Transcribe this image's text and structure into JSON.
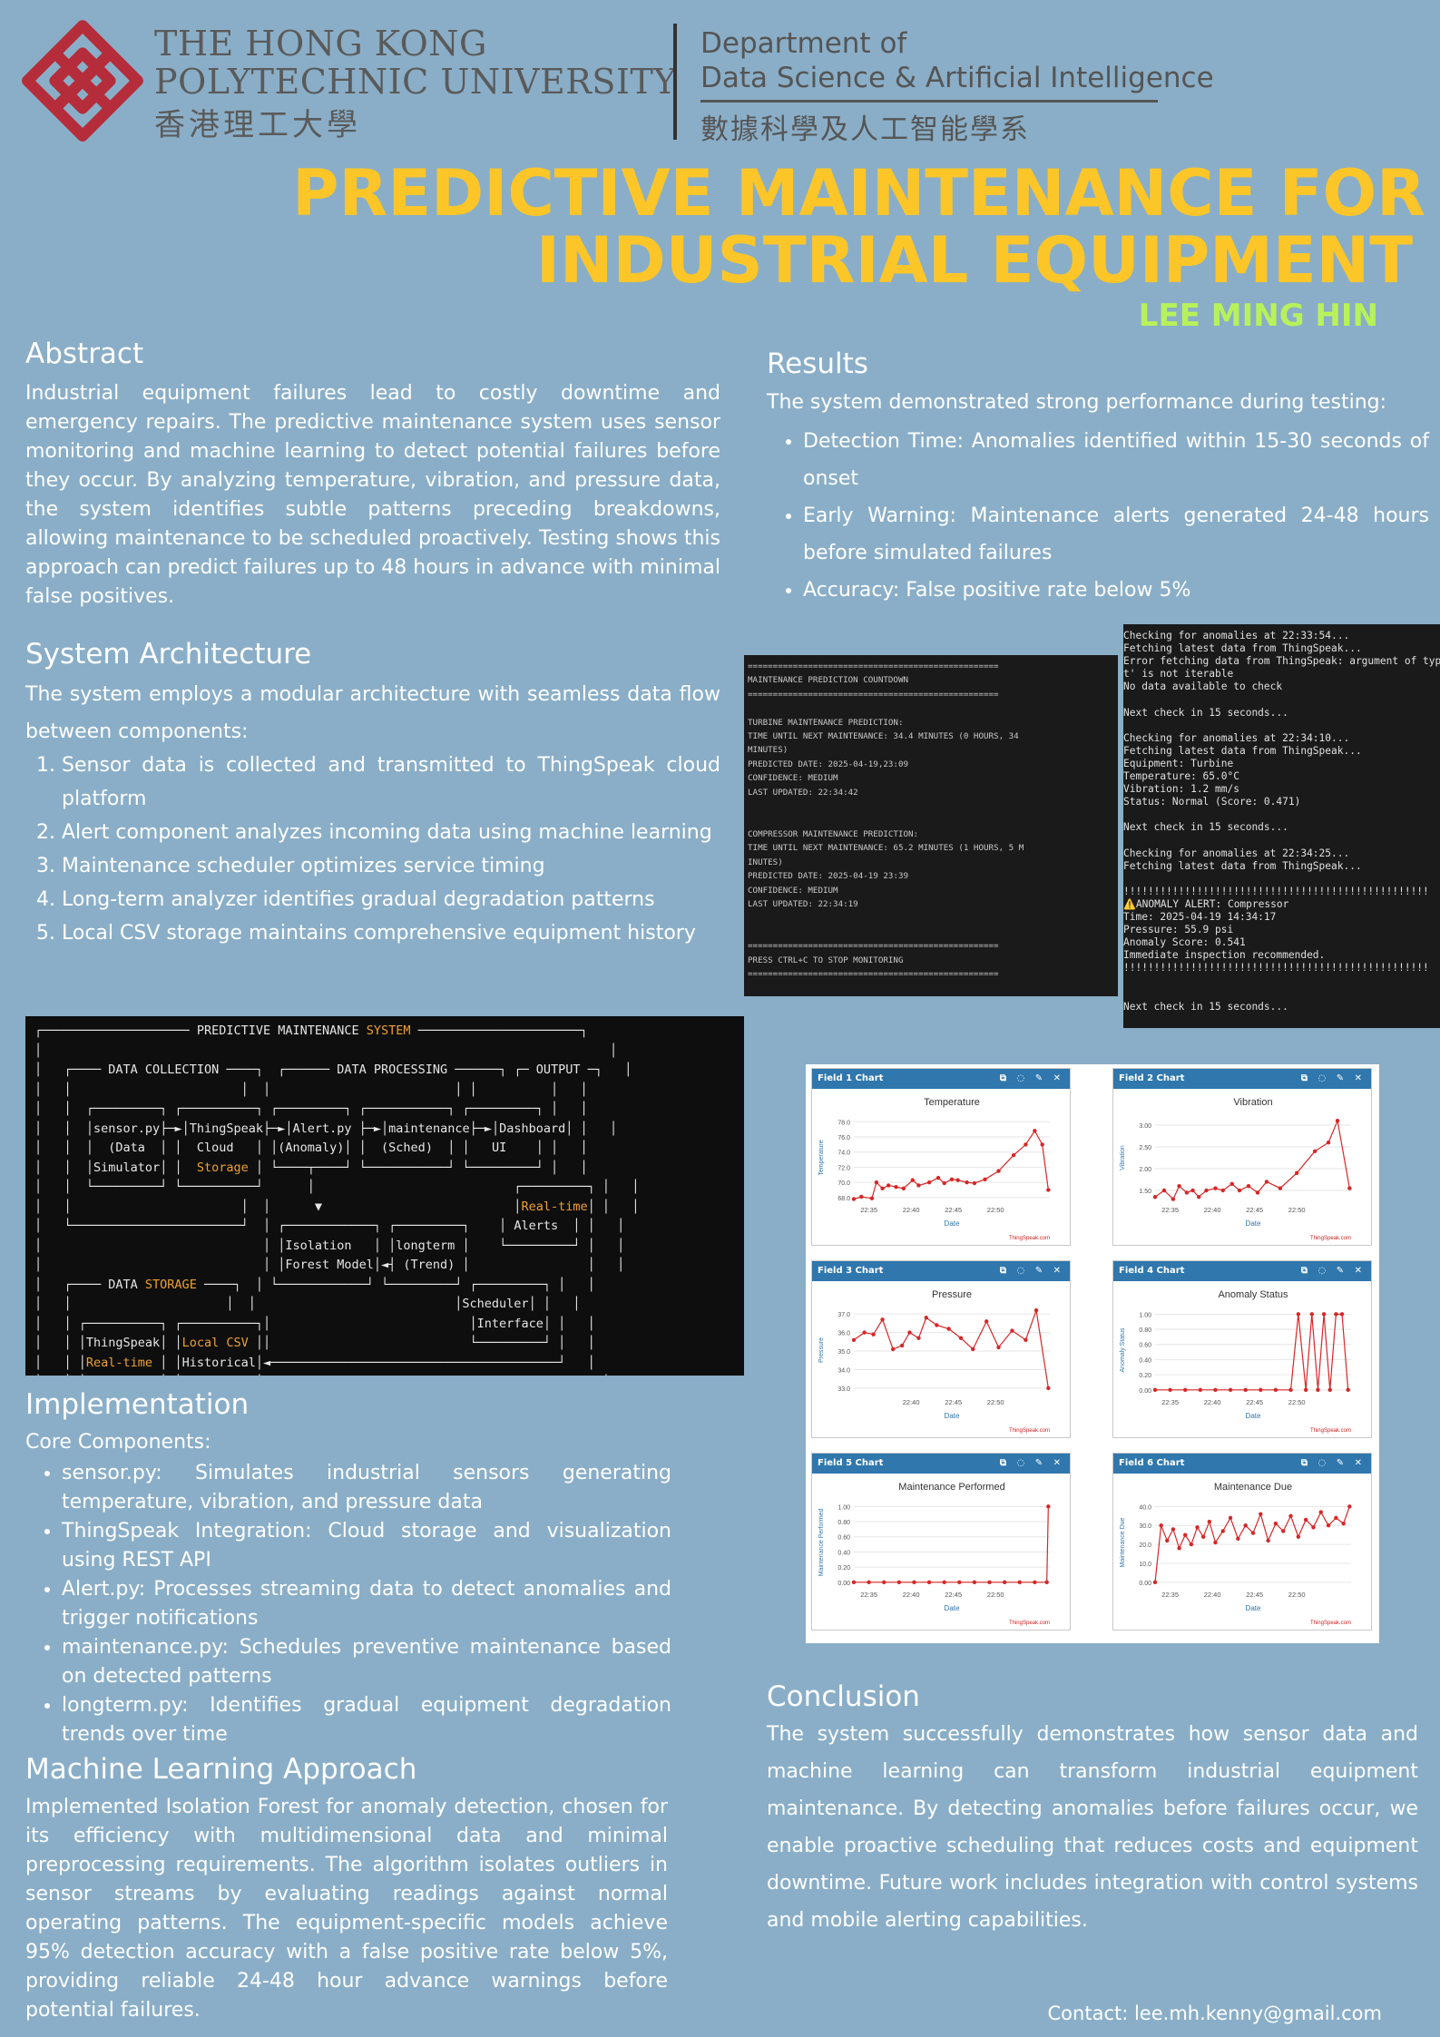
{
  "header": {
    "university_en_line1": "THE HONG KONG",
    "university_en_line2": "POLYTECHNIC UNIVERSITY",
    "university_zh": "香港理工大學",
    "department_line1": "Department of",
    "department_line2": "Data Science & Artificial Intelligence",
    "department_zh": "數據科學及人工智能學系",
    "logo_icon": "polyu-logo-icon",
    "logo_color": "#b52d3a"
  },
  "title": {
    "line1": "PREDICTIVE MAINTENANCE FOR",
    "line2": "INDUSTRIAL EQUIPMENT",
    "color": "#fcc629"
  },
  "author": {
    "name": "LEE MING HIN",
    "color": "#b8f25a"
  },
  "abstract": {
    "heading": "Abstract",
    "text": "Industrial equipment failures lead to costly downtime and emergency repairs. The predictive maintenance system uses sensor monitoring and machine learning to detect potential failures before they occur. By analyzing temperature, vibration, and pressure data, the system identifies subtle patterns preceding breakdowns, allowing maintenance to be scheduled proactively. Testing shows this approach can predict failures up to 48 hours in advance with minimal false positives."
  },
  "architecture": {
    "heading": "System Architecture",
    "intro": "The system employs a modular architecture with seamless data flow between components:",
    "steps": [
      "Sensor data is collected and transmitted to ThingSpeak cloud platform",
      "Alert component analyzes incoming data using machine learning",
      "Maintenance scheduler optimizes service timing",
      "Long-term analyzer identifies gradual degradation patterns",
      "Local CSV storage maintains comprehensive equipment history"
    ]
  },
  "diagram": {
    "title_a": "PREDICTIVE MAINTENANCE ",
    "title_b": "SYSTEM",
    "data_collection": "DATA COLLECTION",
    "data_processing": "DATA PROCESSING",
    "output": "OUTPUT",
    "data_storage_a": "DATA ",
    "data_storage_b": "STORAGE",
    "sensor_1": "sensor.py",
    "sensor_2": "(Data",
    "sensor_3": "Simulator",
    "ts_1": "ThingSpeak",
    "ts_2": "Cloud",
    "ts_3": "Storage",
    "alert_1": "Alert.py",
    "alert_2": "(Anomaly)",
    "maint_1": "maintenance",
    "maint_2": "(Sched)",
    "dash_1": "Dashboard",
    "dash_2": "UI",
    "iso_1": "Isolation",
    "iso_2": "Forest Model",
    "lt_1": "longterm",
    "lt_2": "(Trend)",
    "rt_1": "Real-time",
    "rt_2": "Alerts",
    "tsr_1": "ThingSpeak",
    "tsr_2": "Real-time",
    "csv_1": "Local CSV",
    "csv_2": "Historical",
    "sched_1": "Scheduler",
    "sched_2": "Interface"
  },
  "implementation": {
    "heading": "Implementation",
    "subheading": "Core Components:",
    "items": [
      "sensor.py: Simulates industrial sensors generating temperature, vibration, and pressure data",
      "ThingSpeak Integration: Cloud storage and visualization using REST API",
      "Alert.py: Processes streaming data to detect anomalies and trigger notifications",
      "maintenance.py: Schedules preventive maintenance based on detected patterns",
      "longterm.py: Identifies gradual equipment degradation trends over time"
    ]
  },
  "ml": {
    "heading": "Machine Learning Approach",
    "text": "Implemented Isolation Forest for anomaly detection, chosen for its efficiency with multidimensional data and minimal preprocessing requirements. The algorithm isolates outliers in sensor streams by evaluating readings against normal operating patterns. The equipment-specific models achieve 95% detection accuracy with a false positive rate below 5%, providing reliable 24-48 hour advance warnings before potential failures."
  },
  "results": {
    "heading": "Results",
    "intro": "The system demonstrated strong performance during testing:",
    "items": [
      "Detection Time: Anomalies identified within 15-30 seconds of onset",
      "Early Warning: Maintenance alerts generated 24-48 hours before simulated failures",
      "Accuracy: False positive rate below 5%"
    ]
  },
  "terminal_countdown": {
    "lines": [
      "==================================================",
      "MAINTENANCE PREDICTION COUNTDOWN",
      "==================================================",
      "",
      "TURBINE MAINTENANCE PREDICTION:",
      "TIME UNTIL NEXT MAINTENANCE: 34.4 MINUTES (0 HOURS, 34",
      "MINUTES)",
      "PREDICTED DATE: 2025-04-19,23:09",
      "CONFIDENCE: MEDIUM",
      "LAST UPDATED: 22:34:42",
      "",
      "",
      "COMPRESSOR MAINTENANCE PREDICTION:",
      "TIME UNTIL NEXT MAINTENANCE: 65.2 MINUTES (1 HOURS, 5 M",
      "INUTES)",
      "PREDICTED DATE: 2025-04-19 23:39",
      "CONFIDENCE: MEDIUM",
      "LAST UPDATED: 22:34:19",
      "",
      "",
      "==================================================",
      "PRESS CTRL+C TO STOP MONITORING",
      "=================================================="
    ]
  },
  "terminal_log": {
    "lines": [
      "Checking for anomalies at 22:33:54...",
      "Fetching latest data from ThingSpeak...",
      "Error fetching data from ThingSpeak: argument of type",
      "t' is not iterable",
      "No data available to check",
      "",
      "Next check in 15 seconds...",
      "",
      "Checking for anomalies at 22:34:10...",
      "Fetching latest data from ThingSpeak...",
      "Equipment: Turbine",
      "Temperature: 65.0°C",
      "Vibration: 1.2 mm/s",
      "Status: Normal (Score: 0.471)",
      "",
      "Next check in 15 seconds...",
      "",
      "Checking for anomalies at 22:34:25...",
      "Fetching latest data from ThingSpeak...",
      "",
      "!!!!!!!!!!!!!!!!!!!!!!!!!!!!!!!!!!!!!!!!!!!!!!!!!!",
      "⚠️ANOMALY ALERT: Compressor",
      "Time: 2025-04-19 14:34:17",
      "Pressure: 55.9 psi",
      "Anomaly Score: 0.541",
      "Immediate inspection recommended.",
      "!!!!!!!!!!!!!!!!!!!!!!!!!!!!!!!!!!!!!!!!!!!!!!!!!!",
      "",
      "",
      "Next check in 15 seconds..."
    ]
  },
  "chart_data": [
    {
      "type": "line",
      "panel": "Field 1 Chart",
      "title": "Temperature",
      "xlabel": "Date",
      "ylabel": "Temperature",
      "credit": "ThingSpeak.com",
      "xticks": [
        "22:35",
        "22:40",
        "22:45",
        "22:50"
      ],
      "yticks": [
        "68.0",
        "70.0",
        "72.0",
        "74.0",
        "76.0",
        "78.0"
      ],
      "ylim": [
        67.5,
        79
      ],
      "x": [
        0,
        0.5,
        1.2,
        1.5,
        1.9,
        2.3,
        2.8,
        3.3,
        3.9,
        4.3,
        5,
        5.6,
        6,
        6.5,
        6.9,
        7.5,
        8,
        8.7,
        9.6,
        10.6,
        11.4,
        12,
        12.5,
        12.9
      ],
      "y": [
        67.8,
        68.1,
        67.9,
        70.0,
        69.2,
        69.6,
        69.4,
        69.2,
        70.3,
        69.6,
        70.0,
        70.6,
        69.9,
        70.4,
        70.3,
        70.0,
        69.9,
        70.4,
        71.5,
        73.6,
        75.0,
        76.8,
        75.0,
        69.0
      ]
    },
    {
      "type": "line",
      "panel": "Field 2 Chart",
      "title": "Vibration",
      "xlabel": "Date",
      "ylabel": "Vibration",
      "credit": "ThingSpeak.com",
      "xticks": [
        "22:35",
        "22:40",
        "22:45",
        "22:50"
      ],
      "yticks": [
        "1.50",
        "2.00",
        "2.50",
        "3.00"
      ],
      "ylim": [
        1.25,
        3.25
      ],
      "x": [
        0,
        0.6,
        1.2,
        1.6,
        2.1,
        2.5,
        2.9,
        3.4,
        4,
        4.5,
        5.1,
        5.6,
        6.2,
        6.8,
        7.4,
        8.3,
        9.4,
        10.6,
        11.5,
        12.1,
        12.9
      ],
      "y": [
        1.35,
        1.5,
        1.3,
        1.6,
        1.45,
        1.5,
        1.35,
        1.5,
        1.55,
        1.5,
        1.65,
        1.5,
        1.6,
        1.45,
        1.7,
        1.55,
        1.9,
        2.4,
        2.6,
        3.1,
        1.55
      ]
    },
    {
      "type": "line",
      "panel": "Field 3 Chart",
      "title": "Pressure",
      "xlabel": "Date",
      "ylabel": "Pressure",
      "credit": "ThingSpeak.com",
      "xticks": [
        "22:40",
        "22:45",
        "22:50"
      ],
      "yticks": [
        "33.0",
        "34.0",
        "35.0",
        "36.0",
        "37.0"
      ],
      "ylim": [
        32.7,
        37.4
      ],
      "x": [
        0,
        0.7,
        1.3,
        1.9,
        2.6,
        3.2,
        3.7,
        4.3,
        4.8,
        5.5,
        6.3,
        7.1,
        7.9,
        8.8,
        9.6,
        10.5,
        11.4,
        12.1,
        12.9
      ],
      "y": [
        35.6,
        36.0,
        35.9,
        36.7,
        35.1,
        35.3,
        36.0,
        35.7,
        36.8,
        36.4,
        36.2,
        35.7,
        35.1,
        36.6,
        35.2,
        36.1,
        35.6,
        37.2,
        33.0
      ]
    },
    {
      "type": "line",
      "panel": "Field 4 Chart",
      "title": "Anomaly Status",
      "xlabel": "Date",
      "ylabel": "Anomaly Status",
      "credit": "ThingSpeak.com",
      "xticks": [
        "22:35",
        "22:40",
        "22:45",
        "22:50"
      ],
      "yticks": [
        "0.00",
        "0.20",
        "0.40",
        "0.60",
        "0.80",
        "1.00"
      ],
      "ylim": [
        -0.05,
        1.1
      ],
      "x": [
        0,
        1,
        2,
        3,
        4,
        5,
        6,
        7,
        8,
        9,
        9.5,
        10,
        10.4,
        10.8,
        11.2,
        11.6,
        12,
        12.4,
        12.8
      ],
      "y": [
        0,
        0,
        0,
        0,
        0,
        0,
        0,
        0,
        0,
        0,
        1,
        0,
        1,
        0,
        1,
        0,
        1,
        1,
        0
      ]
    },
    {
      "type": "line",
      "panel": "Field 5 Chart",
      "title": "Maintenance Performed",
      "xlabel": "Date",
      "ylabel": "Maintenance Performed",
      "credit": "ThingSpeak.com",
      "xticks": [
        "22:35",
        "22:40",
        "22:45",
        "22:50"
      ],
      "yticks": [
        "0.00",
        "0.20",
        "0.40",
        "0.60",
        "0.80",
        "1.00"
      ],
      "ylim": [
        -0.05,
        1.1
      ],
      "x": [
        0,
        1,
        2,
        3,
        4,
        5,
        6,
        7,
        8,
        9,
        10,
        11,
        12,
        12.8,
        12.9
      ],
      "y": [
        0,
        0,
        0,
        0,
        0,
        0,
        0,
        0,
        0,
        0,
        0,
        0,
        0,
        0,
        1
      ]
    },
    {
      "type": "line",
      "panel": "Field 6 Chart",
      "title": "Maintenance Due",
      "xlabel": "Date",
      "ylabel": "Maintenance Due",
      "credit": "ThingSpeak.com",
      "xticks": [
        "22:35",
        "22:40",
        "22:45",
        "22:50"
      ],
      "yticks": [
        "0.00",
        "10.0",
        "20.0",
        "30.0",
        "40.0"
      ],
      "ylim": [
        -2,
        44
      ],
      "x": [
        0,
        0.4,
        0.8,
        1.2,
        1.6,
        2,
        2.4,
        2.8,
        3.2,
        3.6,
        4,
        4.5,
        5,
        5.5,
        6,
        6.5,
        7,
        7.5,
        8,
        8.5,
        9,
        9.5,
        10,
        10.5,
        11,
        11.5,
        12,
        12.5,
        12.9
      ],
      "y": [
        0,
        30,
        22,
        28,
        18,
        25,
        20,
        29,
        24,
        32,
        21,
        27,
        34,
        23,
        30,
        26,
        36,
        22,
        31,
        27,
        35,
        24,
        33,
        29,
        37,
        30,
        34,
        31,
        40
      ]
    }
  ],
  "conclusion": {
    "heading": "Conclusion",
    "text": "The system successfully demonstrates how sensor data and machine learning can transform industrial equipment maintenance. By detecting anomalies before failures occur, we enable proactive scheduling that reduces costs and equipment downtime. Future work includes integration with control systems and mobile alerting capabilities."
  },
  "contact": "Contact: lee.mh.kenny@gmail.com"
}
